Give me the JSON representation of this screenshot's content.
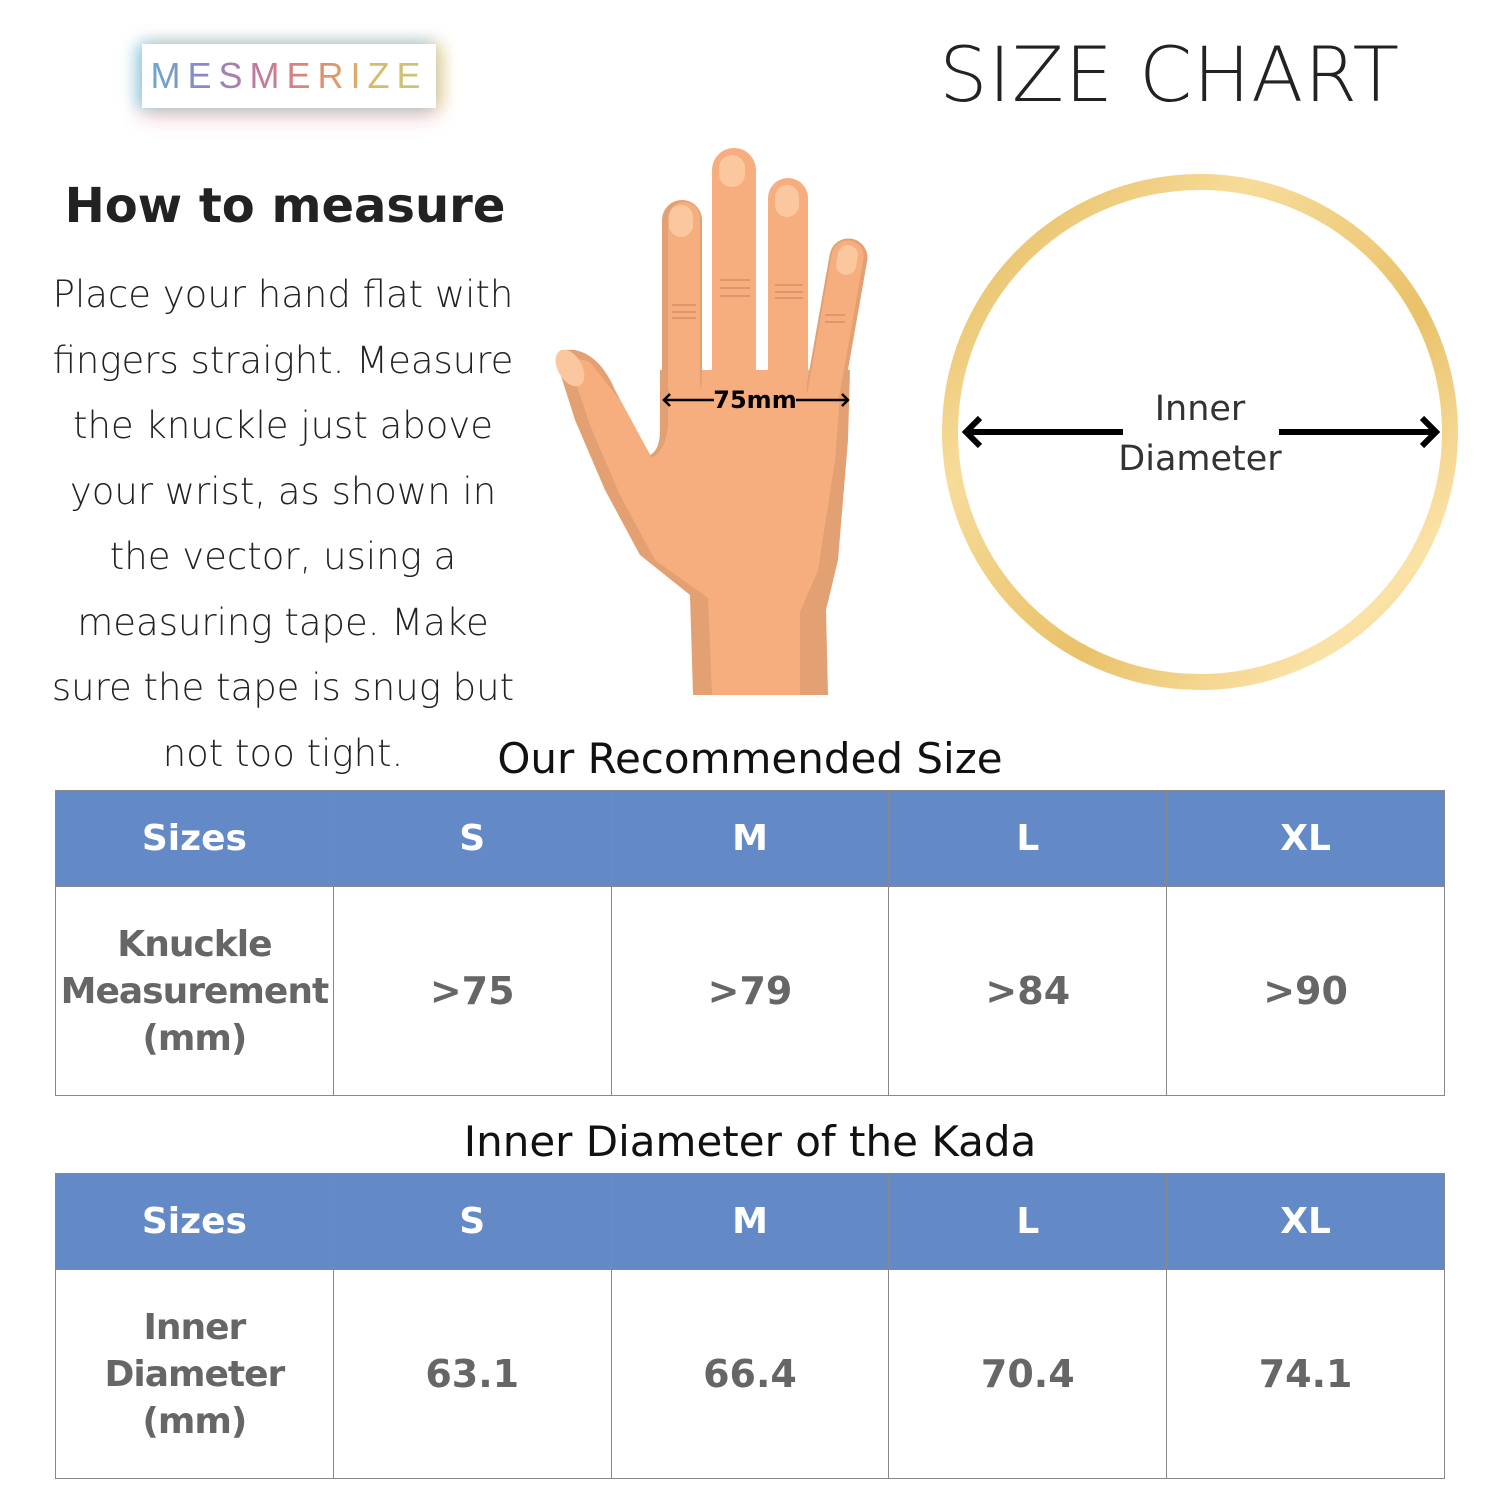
{
  "brand": {
    "logo_text": "MESMERIZE"
  },
  "header": {
    "title": "SIZE CHART"
  },
  "instructions": {
    "heading": "How to measure",
    "text": "Place your hand flat with fingers straight. Measure the knuckle just above your wrist, as shown in the vector, using a measuring tape. Make sure the tape is snug but not too tight."
  },
  "hand_illustration": {
    "measurement_label": "75mm",
    "skin_color": "#f7ae7e"
  },
  "ring_illustration": {
    "label_line1": "Inner",
    "label_line2": "Diameter",
    "ring_color": "#e9c169"
  },
  "colors": {
    "header_blue": "#6389c6",
    "value_gray": "#666666"
  },
  "knuckle_table": {
    "title": "Our Recommended Size",
    "headers": [
      "Sizes",
      "S",
      "M",
      "L",
      "XL"
    ],
    "row_label": [
      "Knuckle",
      "Measurement",
      "(mm)"
    ],
    "values": [
      ">75",
      ">79",
      ">84",
      ">90"
    ]
  },
  "diameter_table": {
    "title": "Inner Diameter of the Kada",
    "headers": [
      "Sizes",
      "S",
      "M",
      "L",
      "XL"
    ],
    "row_label": [
      "Inner",
      "Diameter",
      "(mm)"
    ],
    "values": [
      "63.1",
      "66.4",
      "70.4",
      "74.1"
    ]
  }
}
